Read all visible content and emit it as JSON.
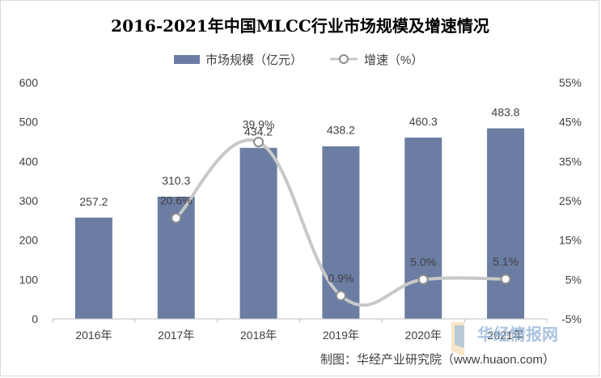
{
  "chart_data": {
    "type": "bar+line",
    "title": "2016-2021年中国MLCC行业市场规模及增速情况",
    "categories": [
      "2016年",
      "2017年",
      "2018年",
      "2019年",
      "2020年",
      "2021年"
    ],
    "series": [
      {
        "name": "市场规模（亿元）",
        "type": "bar",
        "axis": "left",
        "values": [
          257.2,
          310.3,
          434.2,
          438.2,
          460.3,
          483.8
        ],
        "labels": [
          "257.2",
          "310.3",
          "434.2",
          "438.2",
          "460.3",
          "483.8"
        ]
      },
      {
        "name": "增速（%）",
        "type": "line",
        "axis": "right",
        "values": [
          null,
          20.6,
          39.9,
          0.9,
          5.0,
          5.1
        ],
        "labels": [
          "",
          "20.6%",
          "39.9%",
          "0.9%",
          "5.0%",
          "5.1%"
        ]
      }
    ],
    "y_left": {
      "min": 0,
      "max": 600,
      "ticks": [
        "0",
        "100",
        "200",
        "300",
        "400",
        "500",
        "600"
      ]
    },
    "y_right": {
      "min": -5,
      "max": 55,
      "ticks": [
        "-5%",
        "5%",
        "15%",
        "25%",
        "35%",
        "45%",
        "55%"
      ]
    },
    "grid": false,
    "legend_position": "top-center",
    "colors": {
      "bar": "#6b7da3",
      "line": "#c8c8c8",
      "marker_fill": "#ffffff",
      "marker_stroke": "#8c8c8c"
    }
  },
  "credit": "制图：华经产业研究院（www.huaon.com）",
  "watermark": "华经情报网"
}
